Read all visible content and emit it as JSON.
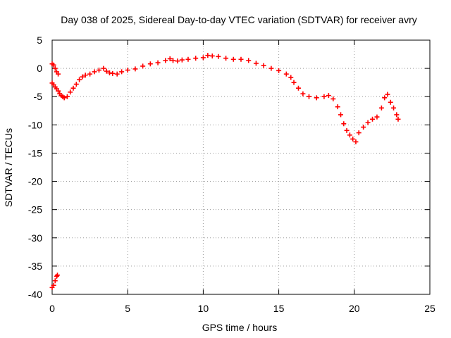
{
  "chart_data": {
    "type": "scatter",
    "title": "Day 038 of 2025, Sidereal Day-to-day VTEC variation (SDTVAR) for receiver avry",
    "xlabel": "GPS time / hours",
    "ylabel": "SDTVAR / TECUs",
    "xlim": [
      0,
      25
    ],
    "ylim": [
      -40,
      5
    ],
    "xticks": [
      0,
      5,
      10,
      15,
      20,
      25
    ],
    "yticks": [
      5,
      0,
      -5,
      -10,
      -15,
      -20,
      -25,
      -30,
      -35,
      -40
    ],
    "grid": true,
    "marker": "+",
    "color": "#ff0000",
    "series": [
      {
        "name": "SDTVAR",
        "points": [
          [
            0.0,
            0.8
          ],
          [
            0.1,
            0.6
          ],
          [
            0.2,
            0.0
          ],
          [
            0.3,
            -0.6
          ],
          [
            0.4,
            -1.0
          ],
          [
            0.0,
            -2.6
          ],
          [
            0.1,
            -2.9
          ],
          [
            0.2,
            -3.3
          ],
          [
            0.3,
            -3.6
          ],
          [
            0.4,
            -4.0
          ],
          [
            0.5,
            -4.5
          ],
          [
            0.6,
            -4.8
          ],
          [
            0.7,
            -5.0
          ],
          [
            0.8,
            -5.2
          ],
          [
            1.0,
            -5.0
          ],
          [
            1.2,
            -4.2
          ],
          [
            1.4,
            -3.5
          ],
          [
            1.6,
            -2.8
          ],
          [
            1.8,
            -2.0
          ],
          [
            2.0,
            -1.5
          ],
          [
            2.2,
            -1.2
          ],
          [
            2.5,
            -1.0
          ],
          [
            2.8,
            -0.6
          ],
          [
            3.1,
            -0.3
          ],
          [
            3.4,
            0.0
          ],
          [
            3.6,
            -0.5
          ],
          [
            3.8,
            -0.8
          ],
          [
            4.0,
            -0.9
          ],
          [
            4.3,
            -1.0
          ],
          [
            4.6,
            -0.6
          ],
          [
            5.0,
            -0.3
          ],
          [
            5.5,
            -0.1
          ],
          [
            6.0,
            0.4
          ],
          [
            6.5,
            0.8
          ],
          [
            7.0,
            1.0
          ],
          [
            7.5,
            1.4
          ],
          [
            7.8,
            1.7
          ],
          [
            8.0,
            1.4
          ],
          [
            8.3,
            1.3
          ],
          [
            8.6,
            1.5
          ],
          [
            9.0,
            1.6
          ],
          [
            9.5,
            1.8
          ],
          [
            10.0,
            1.9
          ],
          [
            10.3,
            2.3
          ],
          [
            10.6,
            2.2
          ],
          [
            11.0,
            2.1
          ],
          [
            11.5,
            1.8
          ],
          [
            12.0,
            1.6
          ],
          [
            12.5,
            1.6
          ],
          [
            13.0,
            1.4
          ],
          [
            13.5,
            0.9
          ],
          [
            14.0,
            0.5
          ],
          [
            14.5,
            0.0
          ],
          [
            15.0,
            -0.4
          ],
          [
            15.5,
            -1.0
          ],
          [
            15.8,
            -1.6
          ],
          [
            16.0,
            -2.5
          ],
          [
            16.3,
            -3.5
          ],
          [
            16.6,
            -4.5
          ],
          [
            17.0,
            -5.0
          ],
          [
            17.5,
            -5.2
          ],
          [
            18.0,
            -5.0
          ],
          [
            18.3,
            -4.8
          ],
          [
            18.6,
            -5.4
          ],
          [
            18.9,
            -6.8
          ],
          [
            19.1,
            -8.2
          ],
          [
            19.3,
            -9.8
          ],
          [
            19.5,
            -11.0
          ],
          [
            19.7,
            -11.8
          ],
          [
            19.9,
            -12.5
          ],
          [
            20.1,
            -13.0
          ],
          [
            20.3,
            -11.4
          ],
          [
            20.6,
            -10.4
          ],
          [
            20.9,
            -9.6
          ],
          [
            21.2,
            -9.0
          ],
          [
            21.5,
            -8.6
          ],
          [
            21.8,
            -7.0
          ],
          [
            22.0,
            -5.2
          ],
          [
            22.2,
            -4.6
          ],
          [
            22.4,
            -6.0
          ],
          [
            22.6,
            -7.0
          ],
          [
            22.8,
            -8.2
          ],
          [
            22.9,
            -9.0
          ],
          [
            0.0,
            -38.8
          ],
          [
            0.1,
            -38.4
          ],
          [
            0.2,
            -37.6
          ],
          [
            0.3,
            -36.8
          ],
          [
            0.35,
            -36.6
          ]
        ]
      }
    ]
  }
}
